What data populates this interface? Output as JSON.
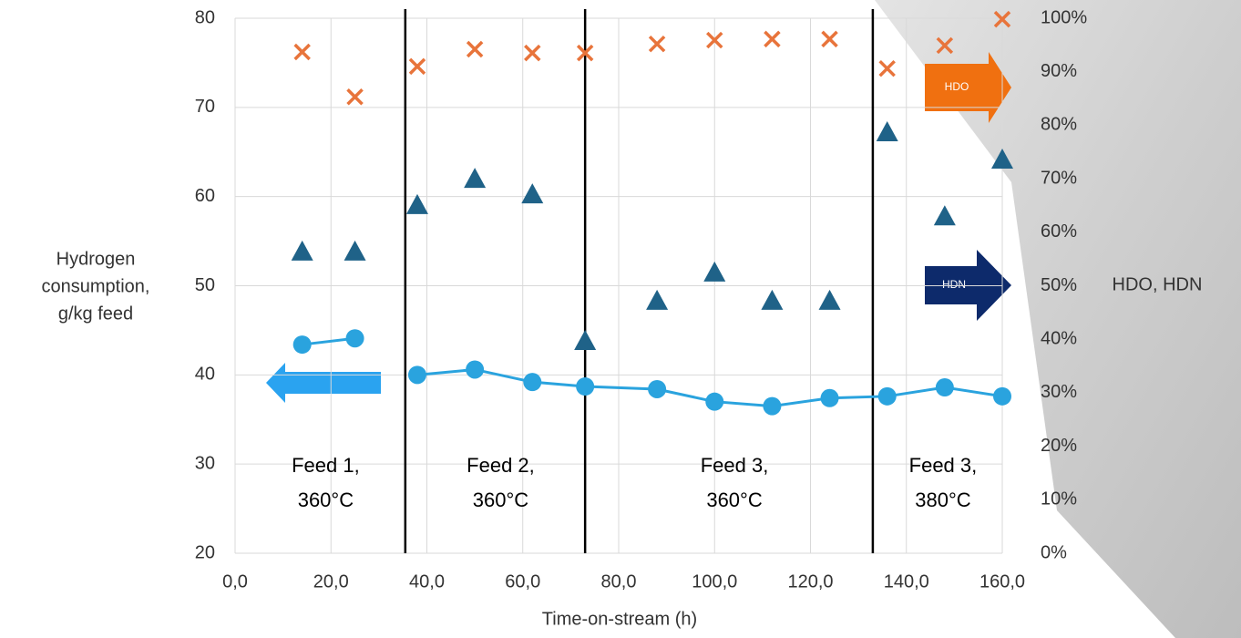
{
  "chart_data": {
    "type": "scatter",
    "x_label": "Time-on-stream (h)",
    "y_label": [
      "Hydrogen",
      "consumption,",
      "g/kg feed"
    ],
    "y2_label": "HDO, HDN",
    "xlim": [
      0,
      160
    ],
    "xticks": [
      {
        "value": 0,
        "label": "0,0"
      },
      {
        "value": 20,
        "label": "20,0"
      },
      {
        "value": 40,
        "label": "40,0"
      },
      {
        "value": 60,
        "label": "60,0"
      },
      {
        "value": 80,
        "label": "80,0"
      },
      {
        "value": 100,
        "label": "100,0"
      },
      {
        "value": 120,
        "label": "120,0"
      },
      {
        "value": 140,
        "label": "140,0"
      },
      {
        "value": 160,
        "label": "160,0"
      }
    ],
    "ylim": [
      20,
      80
    ],
    "yticks": [
      20,
      30,
      40,
      50,
      60,
      70,
      80
    ],
    "y2lim": [
      0,
      100
    ],
    "y2ticks": [
      {
        "value": 0,
        "label": "0%"
      },
      {
        "value": 10,
        "label": "10%"
      },
      {
        "value": 20,
        "label": "20%"
      },
      {
        "value": 30,
        "label": "30%"
      },
      {
        "value": 40,
        "label": "40%"
      },
      {
        "value": 50,
        "label": "50%"
      },
      {
        "value": 60,
        "label": "60%"
      },
      {
        "value": 70,
        "label": "70%"
      },
      {
        "value": 80,
        "label": "80%"
      },
      {
        "value": 90,
        "label": "90%"
      },
      {
        "value": 100,
        "label": "100%"
      }
    ],
    "grid": true,
    "dividers": [
      35.5,
      73,
      133
    ],
    "regions": [
      [
        "Feed 1,",
        "360°C"
      ],
      [
        "Feed 2,",
        "360°C"
      ],
      [
        "Feed 3,",
        "360°C"
      ],
      [
        "Feed 3,",
        "380°C"
      ]
    ],
    "series": [
      {
        "color": "#2aa3de",
        "marker": "circle",
        "line": true,
        "x": [
          14,
          25,
          null,
          38,
          50,
          62,
          73,
          88,
          100,
          112,
          124,
          136,
          148,
          160
        ],
        "values": [
          43.4,
          44.1,
          null,
          40.0,
          40.6,
          39.2,
          38.7,
          38.4,
          37.0,
          36.5,
          37.4,
          37.6,
          38.6,
          37.6
        ]
      },
      {
        "name": "HDO",
        "color": "#e8743b",
        "marker": "cross",
        "axis": "y2",
        "x": [
          14,
          25,
          38,
          50,
          62,
          73,
          88,
          100,
          112,
          124,
          136,
          148,
          160
        ],
        "values": [
          93.7,
          85.3,
          91.0,
          94.2,
          93.5,
          93.5,
          95.2,
          95.9,
          96.1,
          96.1,
          90.6,
          94.9,
          99.8
        ]
      },
      {
        "name": "HDN",
        "color": "#1f6288",
        "marker": "triangle",
        "axis": "y2",
        "x": [
          14,
          25,
          38,
          50,
          62,
          73,
          88,
          100,
          112,
          124,
          136,
          148,
          160
        ],
        "values": [
          56.4,
          56.4,
          65.1,
          70.0,
          67.1,
          39.7,
          47.2,
          52.5,
          47.2,
          47.2,
          78.7,
          63.0,
          73.6
        ]
      }
    ]
  }
}
